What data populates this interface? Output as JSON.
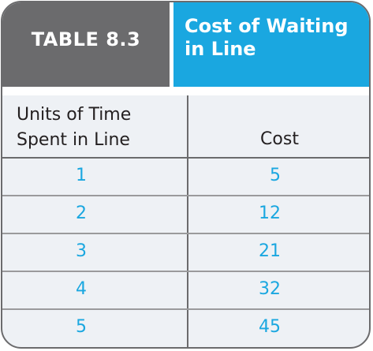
{
  "table": {
    "label": "TABLE 8.3",
    "title": "Cost of Waiting\nin Line",
    "columns": [
      "Units of Time\nSpent in Line",
      "Cost"
    ],
    "rows": [
      {
        "units": "1",
        "cost": "5"
      },
      {
        "units": "2",
        "cost": "12"
      },
      {
        "units": "3",
        "cost": "21"
      },
      {
        "units": "4",
        "cost": "32"
      },
      {
        "units": "5",
        "cost": "45"
      }
    ]
  },
  "colors": {
    "header_gray": "#6b6b6d",
    "header_blue": "#1aa7e0",
    "body_bg": "#eef1f5",
    "value_text": "#1aa7e0"
  }
}
